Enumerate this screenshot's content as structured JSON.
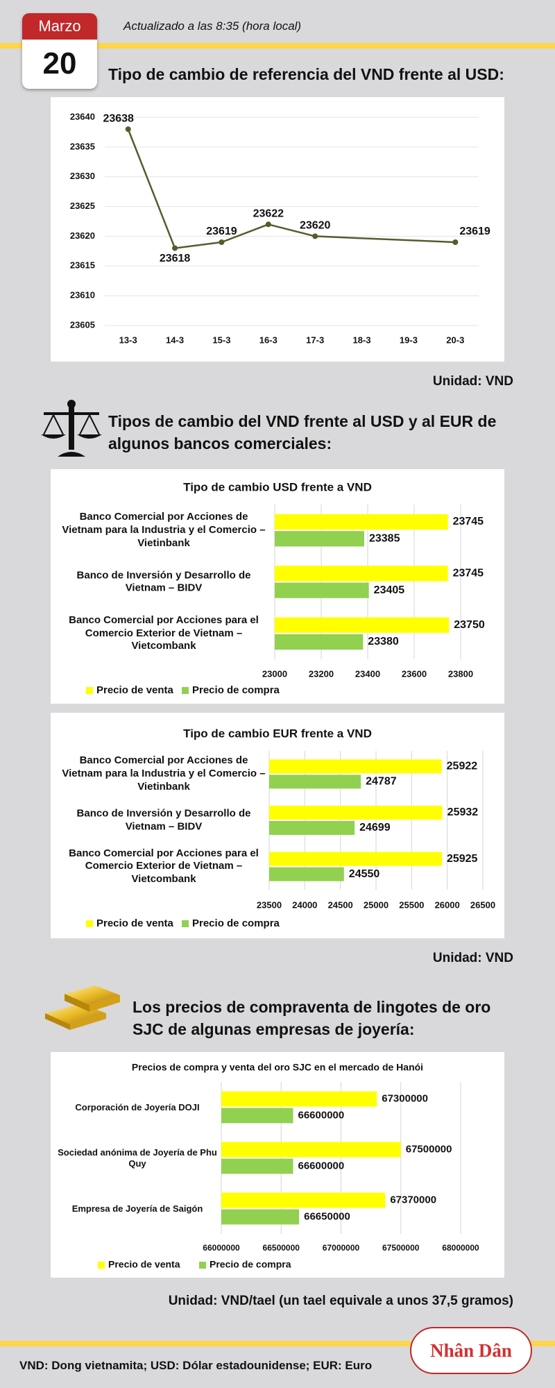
{
  "header": {
    "month": "Marzo",
    "day": "20",
    "updated": "Actualizado a las 8:35 (hora local)"
  },
  "titles": [
    "Tipo de cambio de referencia del VND frente al USD:",
    "Tipos de cambio del VND frente al USD y al EUR de algunos bancos comerciales:",
    "Los precios de compraventa de lingotes de oro SJC de algunas empresas de joyería:"
  ],
  "units": [
    "Unidad: VND",
    "Unidad: VND",
    "Unidad: VND/tael (un tael equivale a unos 37,5 gramos)"
  ],
  "footer": "VND: Dong vietnamita; USD: Dólar estadounidense; EUR: Euro",
  "logo": "Nhân Dân",
  "chart_data": [
    {
      "type": "line",
      "categories": [
        "13-3",
        "14-3",
        "15-3",
        "16-3",
        "17-3",
        "18-3",
        "19-3",
        "20-3"
      ],
      "values": [
        23638,
        23618,
        23619,
        23622,
        23620,
        null,
        null,
        23619
      ],
      "color": "#595a2c",
      "ylim": [
        23605,
        23640
      ],
      "yticks": [
        23605,
        23610,
        23615,
        23620,
        23625,
        23630,
        23635,
        23640
      ],
      "grid": true
    },
    {
      "type": "hbar",
      "title": "Tipo de cambio USD frente a VND",
      "categories": [
        "Banco Comercial por Acciones de Vietnam para la Industria y el Comercio – Vietinbank",
        "Banco de Inversión y Desarrollo de Vietnam – BIDV",
        "Banco Comercial por Acciones para el Comercio Exterior de Vietnam – Vietcombank"
      ],
      "series": [
        {
          "name": "Precio de venta",
          "color": "#ffff00",
          "values": [
            23745,
            23745,
            23750
          ]
        },
        {
          "name": "Precio de compra",
          "color": "#92d050",
          "values": [
            23385,
            23405,
            23380
          ]
        }
      ],
      "xlim": [
        23000,
        23800
      ],
      "xticks": [
        23000,
        23200,
        23400,
        23600,
        23800
      ],
      "grid": true,
      "legend": "bottom"
    },
    {
      "type": "hbar",
      "title": "Tipo de cambio EUR frente a VND",
      "categories": [
        "Banco Comercial por Acciones de Vietnam para la Industria y el Comercio – Vietinbank",
        "Banco de Inversión y Desarrollo de Vietnam – BIDV",
        "Banco Comercial por Acciones para el Comercio Exterior de Vietnam – Vietcombank"
      ],
      "series": [
        {
          "name": "Precio de venta",
          "color": "#ffff00",
          "values": [
            25922,
            25932,
            25925
          ]
        },
        {
          "name": "Precio de compra",
          "color": "#92d050",
          "values": [
            24787,
            24699,
            24550
          ]
        }
      ],
      "xlim": [
        23500,
        26500
      ],
      "xticks": [
        23500,
        24000,
        24500,
        25000,
        25500,
        26000,
        26500
      ],
      "grid": true,
      "legend": "bottom"
    },
    {
      "type": "hbar",
      "title": "Precios de compra y venta del oro SJC en el mercado de Hanói",
      "categories": [
        "Corporación de Joyería DOJI",
        "Sociedad anónima de Joyería de Phu Quy",
        "Empresa de Joyería de Saigón"
      ],
      "series": [
        {
          "name": "Precio de venta",
          "color": "#ffff00",
          "values": [
            67300000,
            67500000,
            67370000
          ]
        },
        {
          "name": "Precio de compra",
          "color": "#92d050",
          "values": [
            66600000,
            66600000,
            66650000
          ]
        }
      ],
      "xlim": [
        66000000,
        68000000
      ],
      "xticks": [
        66000000,
        66500000,
        67000000,
        67500000,
        68000000
      ],
      "grid": true,
      "legend": "bottom"
    }
  ]
}
